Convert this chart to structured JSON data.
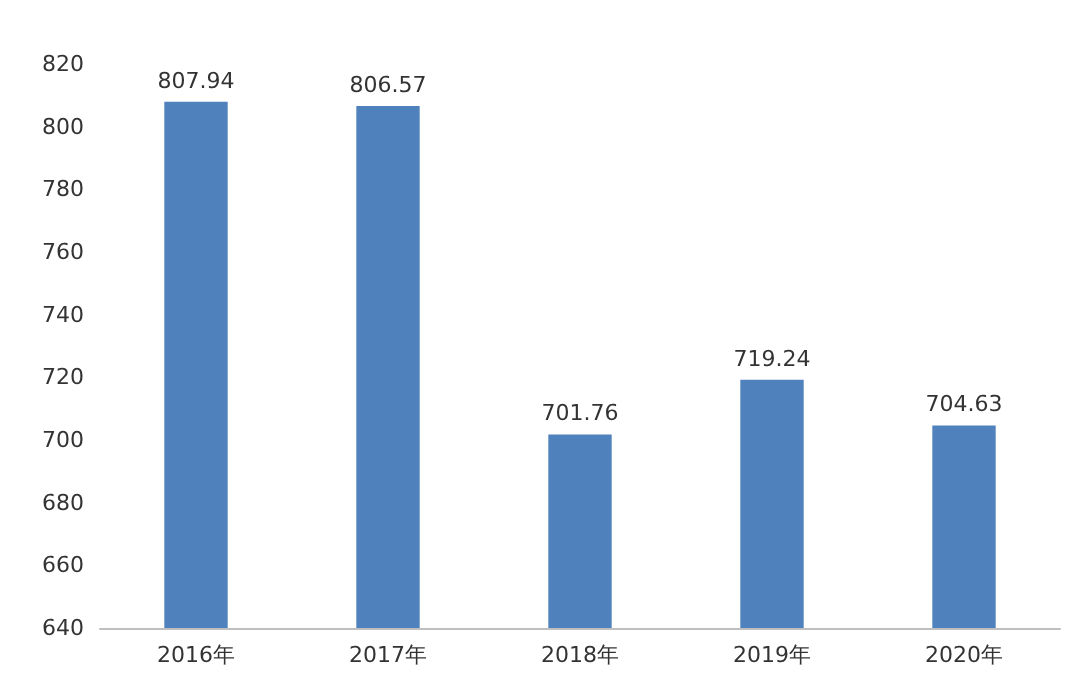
{
  "chart_data": {
    "type": "bar",
    "categories": [
      "2016年",
      "2017年",
      "2018年",
      "2019年",
      "2020年"
    ],
    "values": [
      807.94,
      806.57,
      701.76,
      719.24,
      704.63
    ],
    "color": "#4f81bd",
    "ylim": [
      640,
      820
    ],
    "yticks": [
      640,
      660,
      680,
      700,
      720,
      740,
      760,
      780,
      800,
      820
    ],
    "grid": false,
    "data_labels": true
  }
}
